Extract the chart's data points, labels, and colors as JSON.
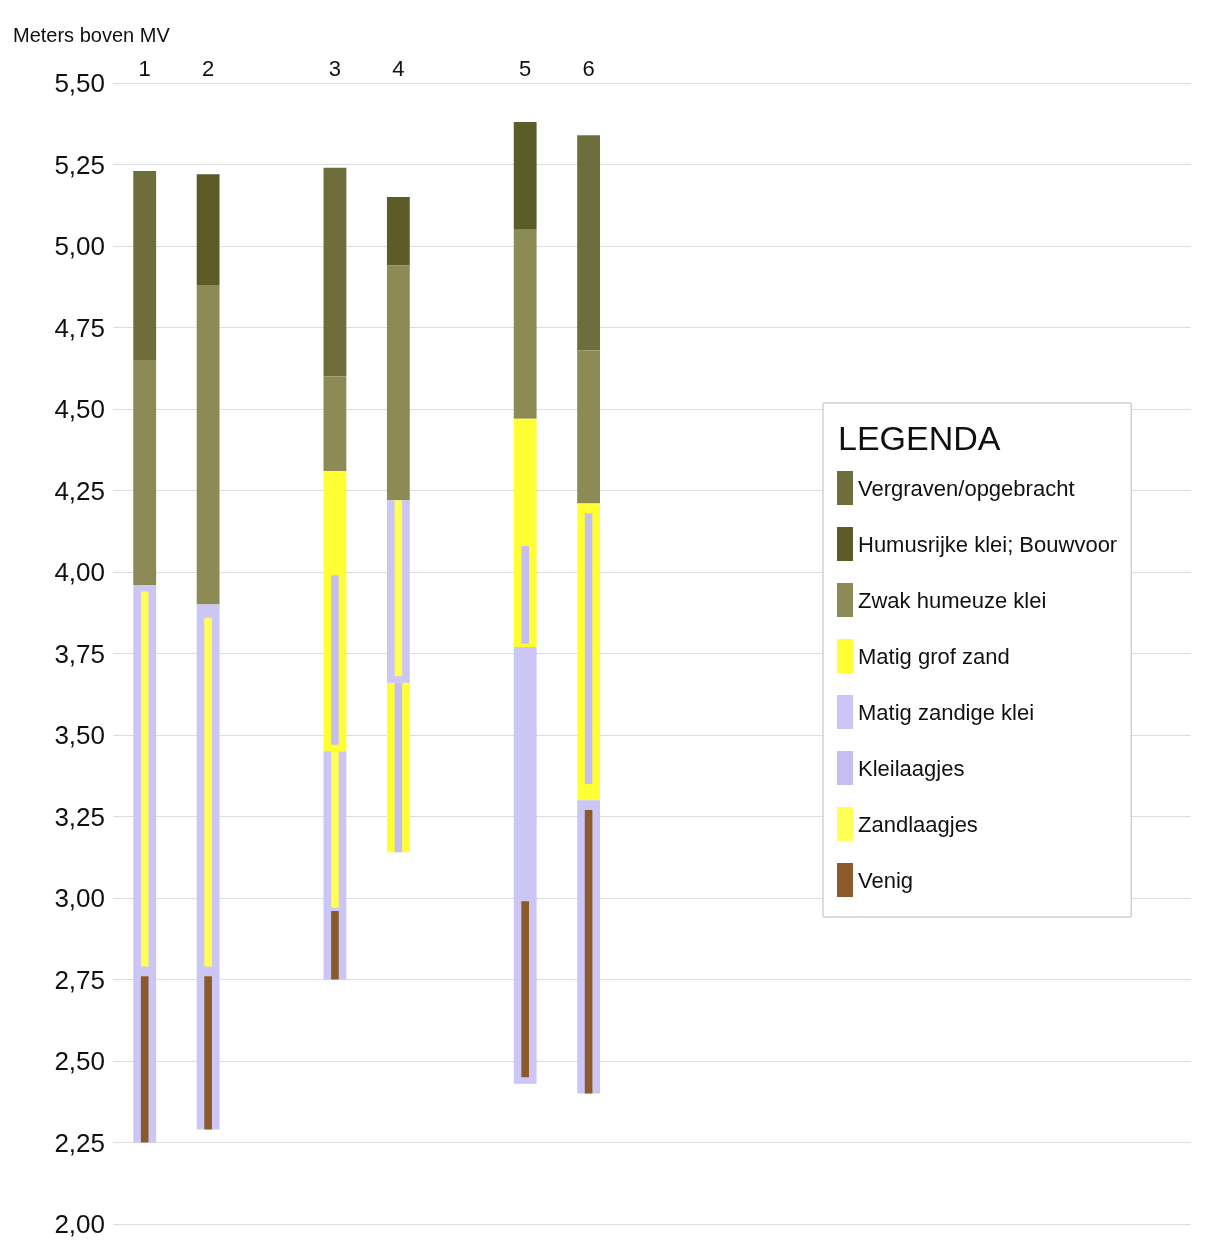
{
  "chart_data": {
    "type": "bar",
    "ylabel": "Meters boven MV",
    "legend_title": "LEGENDA",
    "legend": "right",
    "grid": "y",
    "categories": [
      "1",
      "2",
      null,
      "3",
      "4",
      null,
      "5",
      "6"
    ],
    "ylim": [
      2,
      5.5
    ],
    "yticks": [
      {
        "value": 2,
        "label": "2,00"
      },
      {
        "value": 2.25,
        "label": "2,25"
      },
      {
        "value": 2.5,
        "label": "2,50"
      },
      {
        "value": 2.75,
        "label": "2,75"
      },
      {
        "value": 3,
        "label": "3,00"
      },
      {
        "value": 3.25,
        "label": "3,25"
      },
      {
        "value": 3.5,
        "label": "3,50"
      },
      {
        "value": 3.75,
        "label": "3,75"
      },
      {
        "value": 4,
        "label": "4,00"
      },
      {
        "value": 4.25,
        "label": "4,25"
      },
      {
        "value": 4.5,
        "label": "4,50"
      },
      {
        "value": 4.75,
        "label": "4,75"
      },
      {
        "value": 5,
        "label": "5,00"
      },
      {
        "value": 5.25,
        "label": "5,25"
      },
      {
        "value": 5.5,
        "label": "5,50"
      }
    ],
    "series": [
      {
        "name": "Vergraven/opgebracht",
        "color": "#6e6e3c",
        "base": [
          4.65,
          null,
          null,
          4.6,
          null,
          null,
          null,
          4.68
        ],
        "values": [
          0.58,
          null,
          null,
          0.64,
          null,
          null,
          null,
          0.66
        ]
      },
      {
        "name": "Humusrijke klei; Bouwvoor",
        "color": "#5c5c28",
        "base": [
          null,
          4.88,
          null,
          null,
          4.94,
          null,
          5.05,
          null
        ],
        "values": [
          null,
          0.34,
          null,
          null,
          0.21,
          null,
          0.33,
          null
        ]
      },
      {
        "name": "Zwak humeuze klei",
        "color": "#8c8a55",
        "base": [
          3.96,
          3.9,
          null,
          4.31,
          4.22,
          null,
          4.47,
          4.21
        ],
        "values": [
          0.69,
          0.98,
          null,
          0.29,
          0.72,
          null,
          0.58,
          0.47
        ]
      },
      {
        "name": "Matig grof zand",
        "color": "#ffff33",
        "base": [
          null,
          null,
          null,
          3.45,
          3.14,
          null,
          3.77,
          3.3
        ],
        "values": [
          null,
          null,
          null,
          0.86,
          0.52,
          null,
          0.7,
          0.91
        ]
      },
      {
        "name": "Matig zandige klei",
        "color": "#cbc6f5",
        "base": [
          2.25,
          2.29,
          null,
          2.75,
          3.66,
          null,
          2.43,
          2.4
        ],
        "values": [
          1.71,
          1.61,
          null,
          0.7,
          0.56,
          null,
          1.34,
          0.9
        ]
      },
      {
        "name": "Kleilaagjes",
        "color": "#c4bff0",
        "base": [
          null,
          null,
          null,
          3.47,
          3.14,
          null,
          3.78,
          3.35
        ],
        "values": [
          null,
          null,
          null,
          0.52,
          0.52,
          null,
          0.3,
          0.83
        ]
      },
      {
        "name": "Zandlaagjes",
        "color": "#ffff55",
        "base": [
          2.79,
          2.79,
          null,
          2.97,
          3.68,
          null,
          null,
          null
        ],
        "values": [
          1.15,
          1.07,
          null,
          0.48,
          0.54,
          null,
          null,
          null
        ]
      },
      {
        "name": "Venig",
        "color": "#8b5a2b",
        "base": [
          2.25,
          2.29,
          null,
          2.75,
          null,
          null,
          2.45,
          2.4
        ],
        "values": [
          0.51,
          0.47,
          null,
          0.21,
          null,
          null,
          0.54,
          0.87
        ]
      }
    ]
  }
}
